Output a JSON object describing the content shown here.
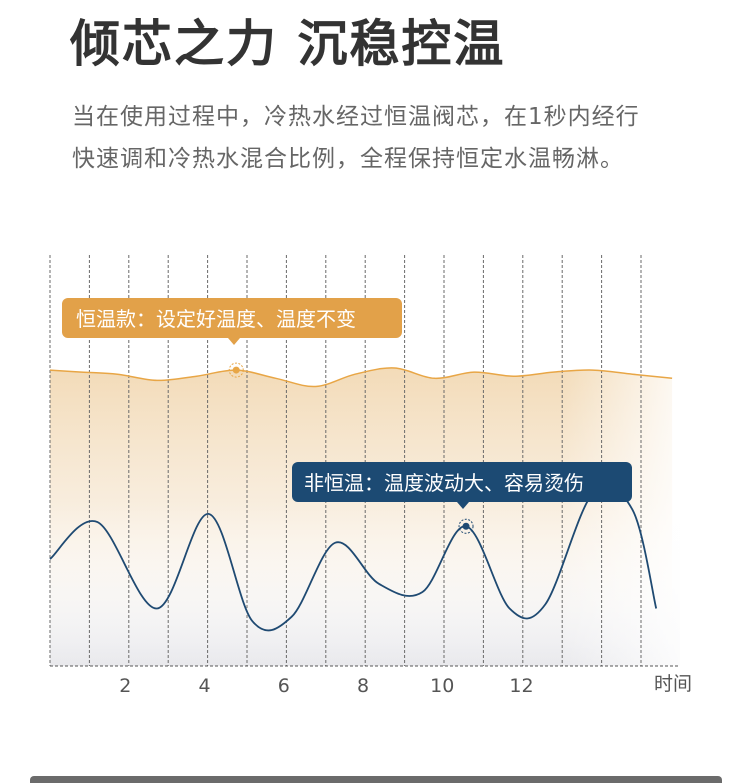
{
  "title": "倾芯之力 沉稳控温",
  "description": "当在使用过程中，冷热水经过恒温阀芯，在1秒内经行快速调和冷热水混合比例，全程保持恒定水温畅淋。",
  "colors": {
    "constant": "#e8a646",
    "constant_label_bg": "#e2a149",
    "non_constant": "#1f4a72",
    "non_constant_label_bg": "#1c4a73",
    "grid": "#6a6a6a",
    "tick_text": "#555555"
  },
  "chart_data": {
    "type": "line",
    "title": "",
    "xlabel": "时间",
    "ylabel": "",
    "x_ticks": [
      2,
      4,
      6,
      8,
      10,
      12
    ],
    "xlim": [
      0.1,
      16
    ],
    "ylim": [
      0,
      100
    ],
    "grid": "vertical dashed",
    "series": [
      {
        "name": "恒温款：设定好温度、温度不变",
        "x": [
          0,
          0.9,
          1.8,
          2.8,
          3.8,
          4.8,
          5.8,
          6.8,
          7.8,
          8.8,
          9.8,
          10.8,
          11.8,
          12.8,
          13.8,
          14.8,
          15.8
        ],
        "y": [
          72,
          71.5,
          71,
          69.5,
          70.5,
          72,
          70,
          68,
          71,
          72.5,
          70,
          71.5,
          70.5,
          71.5,
          72,
          71,
          70
        ]
      },
      {
        "name": "非恒温：温度波动大、容易烫伤",
        "x": [
          0,
          1.3,
          2.8,
          4.1,
          5.2,
          6.2,
          7.3,
          8.4,
          9.5,
          10.6,
          11.7,
          12.6,
          13.8,
          14.8,
          15.4
        ],
        "y": [
          26,
          35,
          14,
          37,
          11,
          12,
          30,
          20,
          18,
          34,
          14,
          15,
          42,
          38,
          14
        ]
      }
    ]
  }
}
